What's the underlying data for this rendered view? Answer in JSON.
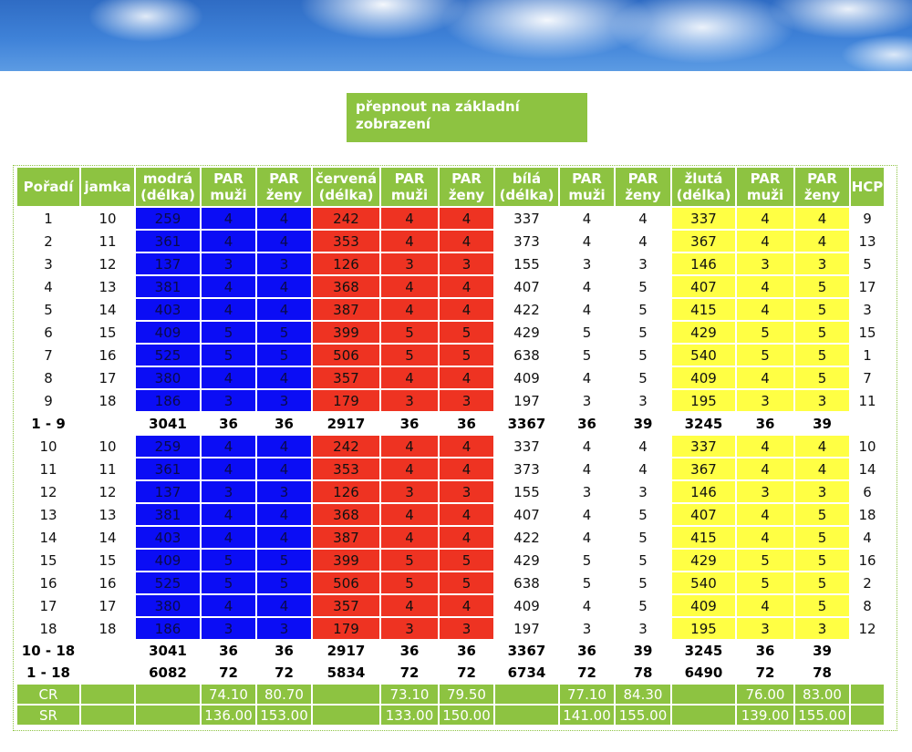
{
  "switch_button": {
    "label": "přepnout na základní zobrazení"
  },
  "headers": [
    "Pořadí",
    "jamka",
    "modrá (délka)",
    "PAR muži",
    "PAR ženy",
    "červená (délka)",
    "PAR muži",
    "PAR ženy",
    "bílá (délka)",
    "PAR muži",
    "PAR ženy",
    "žlutá (délka)",
    "PAR muži",
    "PAR ženy",
    "HCP"
  ],
  "rows": [
    [
      "1",
      "10",
      "259",
      "4",
      "4",
      "242",
      "4",
      "4",
      "337",
      "4",
      "4",
      "337",
      "4",
      "4",
      "9"
    ],
    [
      "2",
      "11",
      "361",
      "4",
      "4",
      "353",
      "4",
      "4",
      "373",
      "4",
      "4",
      "367",
      "4",
      "4",
      "13"
    ],
    [
      "3",
      "12",
      "137",
      "3",
      "3",
      "126",
      "3",
      "3",
      "155",
      "3",
      "3",
      "146",
      "3",
      "3",
      "5"
    ],
    [
      "4",
      "13",
      "381",
      "4",
      "4",
      "368",
      "4",
      "4",
      "407",
      "4",
      "5",
      "407",
      "4",
      "5",
      "17"
    ],
    [
      "5",
      "14",
      "403",
      "4",
      "4",
      "387",
      "4",
      "4",
      "422",
      "4",
      "5",
      "415",
      "4",
      "5",
      "3"
    ],
    [
      "6",
      "15",
      "409",
      "5",
      "5",
      "399",
      "5",
      "5",
      "429",
      "5",
      "5",
      "429",
      "5",
      "5",
      "15"
    ],
    [
      "7",
      "16",
      "525",
      "5",
      "5",
      "506",
      "5",
      "5",
      "638",
      "5",
      "5",
      "540",
      "5",
      "5",
      "1"
    ],
    [
      "8",
      "17",
      "380",
      "4",
      "4",
      "357",
      "4",
      "4",
      "409",
      "4",
      "5",
      "409",
      "4",
      "5",
      "7"
    ],
    [
      "9",
      "18",
      "186",
      "3",
      "3",
      "179",
      "3",
      "3",
      "197",
      "3",
      "3",
      "195",
      "3",
      "3",
      "11"
    ],
    [
      "1 - 9",
      "",
      "3041",
      "36",
      "36",
      "2917",
      "36",
      "36",
      "3367",
      "36",
      "39",
      "3245",
      "36",
      "39",
      ""
    ],
    [
      "10",
      "10",
      "259",
      "4",
      "4",
      "242",
      "4",
      "4",
      "337",
      "4",
      "4",
      "337",
      "4",
      "4",
      "10"
    ],
    [
      "11",
      "11",
      "361",
      "4",
      "4",
      "353",
      "4",
      "4",
      "373",
      "4",
      "4",
      "367",
      "4",
      "4",
      "14"
    ],
    [
      "12",
      "12",
      "137",
      "3",
      "3",
      "126",
      "3",
      "3",
      "155",
      "3",
      "3",
      "146",
      "3",
      "3",
      "6"
    ],
    [
      "13",
      "13",
      "381",
      "4",
      "4",
      "368",
      "4",
      "4",
      "407",
      "4",
      "5",
      "407",
      "4",
      "5",
      "18"
    ],
    [
      "14",
      "14",
      "403",
      "4",
      "4",
      "387",
      "4",
      "4",
      "422",
      "4",
      "5",
      "415",
      "4",
      "5",
      "4"
    ],
    [
      "15",
      "15",
      "409",
      "5",
      "5",
      "399",
      "5",
      "5",
      "429",
      "5",
      "5",
      "429",
      "5",
      "5",
      "16"
    ],
    [
      "16",
      "16",
      "525",
      "5",
      "5",
      "506",
      "5",
      "5",
      "638",
      "5",
      "5",
      "540",
      "5",
      "5",
      "2"
    ],
    [
      "17",
      "17",
      "380",
      "4",
      "4",
      "357",
      "4",
      "4",
      "409",
      "4",
      "5",
      "409",
      "4",
      "5",
      "8"
    ],
    [
      "18",
      "18",
      "186",
      "3",
      "3",
      "179",
      "3",
      "3",
      "197",
      "3",
      "3",
      "195",
      "3",
      "3",
      "12"
    ],
    [
      "10 - 18",
      "",
      "3041",
      "36",
      "36",
      "2917",
      "36",
      "36",
      "3367",
      "36",
      "39",
      "3245",
      "36",
      "39",
      ""
    ],
    [
      "1 - 18",
      "",
      "6082",
      "72",
      "72",
      "5834",
      "72",
      "72",
      "6734",
      "72",
      "78",
      "6490",
      "72",
      "78",
      ""
    ],
    [
      "CR",
      "",
      "",
      "74.10",
      "80.70",
      "",
      "73.10",
      "79.50",
      "",
      "77.10",
      "84.30",
      "",
      "76.00",
      "83.00",
      ""
    ],
    [
      "SR",
      "",
      "",
      "136.00",
      "153.00",
      "",
      "133.00",
      "150.00",
      "",
      "141.00",
      "155.00",
      "",
      "139.00",
      "155.00",
      ""
    ]
  ],
  "tee_colors": {
    "blue": "#0b0df5",
    "red": "#ee3322",
    "white": "#ffffff",
    "yellow": "#ffff44",
    "header": "#8dc341"
  }
}
